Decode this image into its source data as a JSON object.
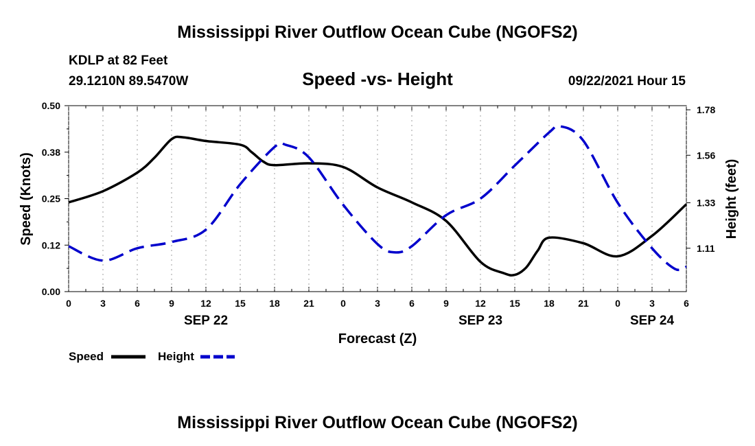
{
  "chart_data": {
    "type": "line",
    "title": "Mississippi River Outflow Ocean Cube (NGOFS2)",
    "footer_title": "Mississippi River Outflow Ocean Cube (NGOFS2)",
    "subtitle": "Speed -vs- Height",
    "station": "KDLP at 82 Feet",
    "coords": "29.1210N  89.5470W",
    "date_label": "09/22/2021 Hour 15",
    "xlabel": "Forecast (Z)",
    "ylabel_left": "Speed (Knots)",
    "ylabel_right": "Height (feet)",
    "x_range": [
      0,
      54
    ],
    "ylim_left": [
      0.0,
      0.5
    ],
    "ylim_right": [
      0.9,
      1.8
    ],
    "x_ticks": [
      {
        "x": 0,
        "label": "0"
      },
      {
        "x": 3,
        "label": "3"
      },
      {
        "x": 6,
        "label": "6"
      },
      {
        "x": 9,
        "label": "9"
      },
      {
        "x": 12,
        "label": "12"
      },
      {
        "x": 15,
        "label": "15"
      },
      {
        "x": 18,
        "label": "18"
      },
      {
        "x": 21,
        "label": "21"
      },
      {
        "x": 24,
        "label": "0"
      },
      {
        "x": 27,
        "label": "3"
      },
      {
        "x": 30,
        "label": "6"
      },
      {
        "x": 33,
        "label": "9"
      },
      {
        "x": 36,
        "label": "12"
      },
      {
        "x": 39,
        "label": "15"
      },
      {
        "x": 42,
        "label": "18"
      },
      {
        "x": 45,
        "label": "21"
      },
      {
        "x": 48,
        "label": "0"
      },
      {
        "x": 51,
        "label": "3"
      },
      {
        "x": 54,
        "label": "6"
      }
    ],
    "date_ticks": [
      {
        "x": 12,
        "label": "SEP 22"
      },
      {
        "x": 36,
        "label": "SEP 23"
      },
      {
        "x": 51,
        "label": "SEP 24"
      }
    ],
    "y_ticks_left": [
      {
        "value": 0.0,
        "label": "0.00"
      },
      {
        "value": 0.125,
        "label": "0.12"
      },
      {
        "value": 0.25,
        "label": "0.25"
      },
      {
        "value": 0.375,
        "label": "0.38"
      },
      {
        "value": 0.5,
        "label": "0.50"
      }
    ],
    "y_ticks_right": [
      {
        "value": 1.11,
        "label": "1.11"
      },
      {
        "value": 1.33,
        "label": "1.33"
      },
      {
        "value": 1.56,
        "label": "1.56"
      },
      {
        "value": 1.78,
        "label": "1.78"
      }
    ],
    "series": [
      {
        "name": "Speed",
        "axis": "left",
        "color": "#000000",
        "dash": "solid",
        "x": [
          0,
          3,
          6,
          7.5,
          9,
          10,
          12,
          15,
          16,
          17,
          18,
          21,
          24,
          27,
          30,
          33,
          36,
          38,
          39,
          40,
          41,
          42,
          45,
          48,
          51,
          54
        ],
        "values": [
          0.24,
          0.27,
          0.32,
          0.36,
          0.41,
          0.415,
          0.405,
          0.395,
          0.375,
          0.35,
          0.34,
          0.345,
          0.335,
          0.28,
          0.24,
          0.19,
          0.08,
          0.05,
          0.045,
          0.065,
          0.11,
          0.145,
          0.13,
          0.095,
          0.15,
          0.235
        ]
      },
      {
        "name": "Height",
        "axis": "right",
        "color": "#0000cc",
        "dash": "dashed",
        "x": [
          0,
          3,
          6,
          9,
          12,
          15,
          18,
          19,
          21,
          24,
          27,
          28.5,
          30,
          33,
          36,
          39,
          42,
          43,
          45,
          48,
          51,
          53,
          54
        ],
        "values": [
          1.12,
          1.05,
          1.11,
          1.14,
          1.2,
          1.42,
          1.6,
          1.61,
          1.55,
          1.32,
          1.13,
          1.09,
          1.12,
          1.27,
          1.35,
          1.51,
          1.67,
          1.7,
          1.63,
          1.33,
          1.11,
          1.01,
          1.02
        ]
      }
    ]
  },
  "legend": {
    "speed_label": "Speed",
    "height_label": "Height"
  }
}
